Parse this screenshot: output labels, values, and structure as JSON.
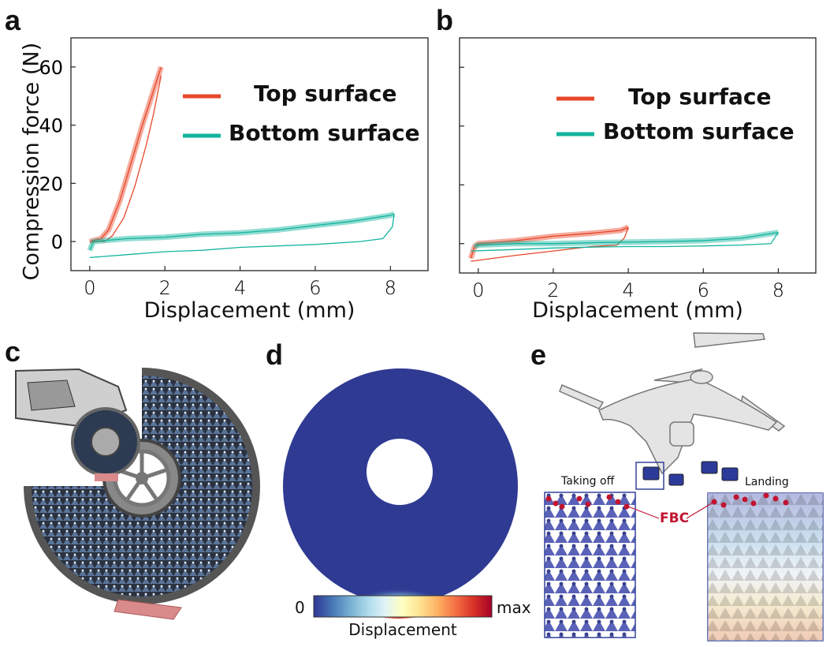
{
  "panels": {
    "a": "a",
    "b": "b",
    "c": "c",
    "d": "d",
    "e": "e"
  },
  "colors": {
    "top": "#e8472a",
    "bottom": "#12b49d",
    "fbc": "#c01530",
    "disk": "#2f3a93"
  },
  "chart_data": [
    {
      "panel": "a",
      "type": "line",
      "xlabel": "Displacement (mm)",
      "ylabel": "Compression force (N)",
      "xlim": [
        -0.5,
        9
      ],
      "ylim": [
        -10,
        70
      ],
      "xticks": [
        "0",
        "2",
        "4",
        "6",
        "8"
      ],
      "yticks": [
        "0",
        "20",
        "40",
        "60"
      ],
      "grid": false,
      "legend_position": "top-right",
      "series": [
        {
          "name": "Top surface",
          "color": "#e8472a",
          "loading": [
            [
              0,
              0
            ],
            [
              0.3,
              1
            ],
            [
              0.5,
              4
            ],
            [
              0.8,
              14
            ],
            [
              1.1,
              27
            ],
            [
              1.4,
              40
            ],
            [
              1.7,
              52
            ],
            [
              1.9,
              60
            ]
          ],
          "unloading": [
            [
              1.9,
              57
            ],
            [
              1.7,
              44
            ],
            [
              1.5,
              33
            ],
            [
              1.2,
              19
            ],
            [
              0.9,
              8
            ],
            [
              0.6,
              2
            ],
            [
              0.4,
              0
            ],
            [
              0,
              0
            ]
          ]
        },
        {
          "name": "Bottom surface",
          "color": "#12b49d",
          "loading": [
            [
              0,
              -3
            ],
            [
              0.1,
              0
            ],
            [
              1,
              1
            ],
            [
              2,
              1.5
            ],
            [
              3,
              2.5
            ],
            [
              4,
              3
            ],
            [
              5,
              4
            ],
            [
              6,
              5.5
            ],
            [
              7,
              7
            ],
            [
              8,
              9
            ],
            [
              8.1,
              9.5
            ]
          ],
          "unloading": [
            [
              8.1,
              9.5
            ],
            [
              8.05,
              5
            ],
            [
              7.8,
              1
            ],
            [
              7.2,
              0
            ],
            [
              6,
              -1
            ],
            [
              5,
              -1.5
            ],
            [
              4,
              -2
            ],
            [
              3,
              -3
            ],
            [
              2,
              -3.5
            ],
            [
              1,
              -4.5
            ],
            [
              0,
              -5.5
            ]
          ]
        }
      ]
    },
    {
      "panel": "b",
      "type": "line",
      "xlabel": "Displacement (mm)",
      "ylabel": "",
      "xlim": [
        -0.5,
        9
      ],
      "ylim": [
        -10,
        70
      ],
      "xticks": [
        "0",
        "2",
        "4",
        "6",
        "8"
      ],
      "yticks": [],
      "grid": false,
      "legend_position": "top-right",
      "series": [
        {
          "name": "Top surface",
          "color": "#e8472a",
          "loading": [
            [
              -0.2,
              -5
            ],
            [
              -0.1,
              -1
            ],
            [
              0,
              0
            ],
            [
              1,
              1
            ],
            [
              2,
              2.5
            ],
            [
              3,
              3.5
            ],
            [
              3.8,
              4.5
            ],
            [
              4,
              5.6
            ]
          ],
          "unloading": [
            [
              4,
              5.6
            ],
            [
              3.9,
              2
            ],
            [
              3.7,
              -0.5
            ],
            [
              3,
              -1
            ],
            [
              2,
              -2.5
            ],
            [
              1,
              -4
            ],
            [
              -0.2,
              -6
            ]
          ]
        },
        {
          "name": "Bottom surface",
          "color": "#12b49d",
          "loading": [
            [
              -0.1,
              -1
            ],
            [
              0,
              -0.5
            ],
            [
              1,
              0
            ],
            [
              2,
              0
            ],
            [
              3,
              0.3
            ],
            [
              4,
              0.5
            ],
            [
              5,
              0.7
            ],
            [
              6,
              1
            ],
            [
              7,
              1.8
            ],
            [
              8,
              3.8
            ]
          ],
          "unloading": [
            [
              8,
              3.8
            ],
            [
              7.8,
              0
            ],
            [
              7,
              -0.5
            ],
            [
              6,
              -0.8
            ],
            [
              5,
              -1
            ],
            [
              4,
              -1
            ],
            [
              3,
              -1.2
            ],
            [
              2,
              -1.5
            ],
            [
              1,
              -2
            ],
            [
              -0.2,
              -2.5
            ]
          ]
        }
      ]
    }
  ],
  "colorbar": {
    "min_label": "0",
    "max_label": "max",
    "label": "Displacement",
    "colors": [
      "#313695",
      "#4575b4",
      "#74add1",
      "#abd9e9",
      "#e0f3f8",
      "#ffffbf",
      "#fee090",
      "#fdae61",
      "#f46d43",
      "#d73027",
      "#a50026"
    ]
  },
  "drone": {
    "taking_off": "Taking off",
    "landing": "Landing",
    "fbc": "FBC"
  }
}
